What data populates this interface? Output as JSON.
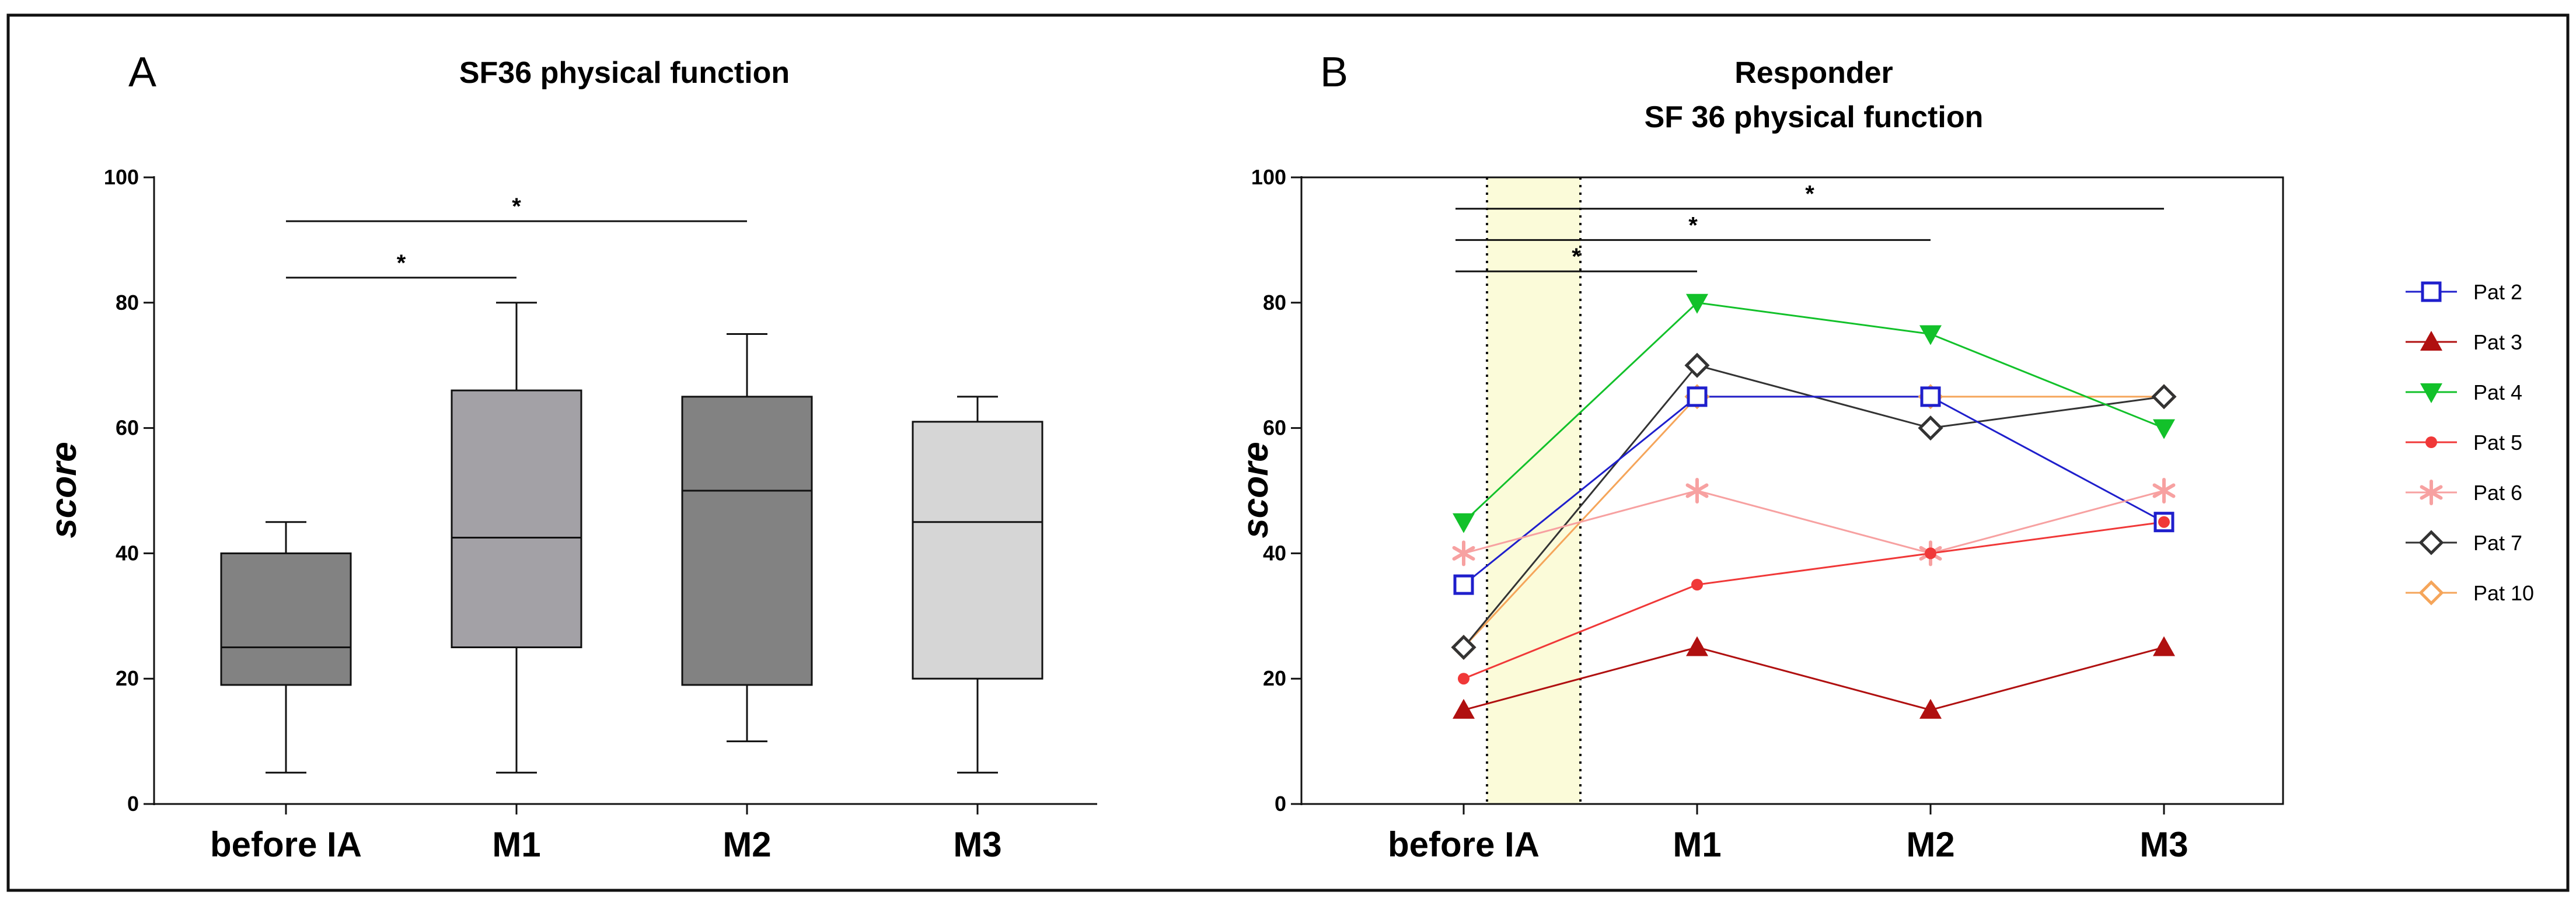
{
  "chart_data": [
    {
      "type": "box",
      "panel_label": "A",
      "title": "SF36 physical function",
      "xlabel": "",
      "ylabel": "score",
      "ylim": [
        0,
        100
      ],
      "yticks": [
        "0",
        "20",
        "40",
        "60",
        "80",
        "100"
      ],
      "categories": [
        "before IA",
        "M1",
        "M2",
        "M3"
      ],
      "boxes": [
        {
          "min": 5,
          "q1": 19,
          "median": 25,
          "q3": 40,
          "max": 45,
          "color": "#828282"
        },
        {
          "min": 5,
          "q1": 25,
          "median": 42.5,
          "q3": 66,
          "max": 80,
          "color": "#a3a1a6"
        },
        {
          "min": 10,
          "q1": 19,
          "median": 50,
          "q3": 65,
          "max": 75,
          "color": "#828282"
        },
        {
          "min": 5,
          "q1": 20,
          "median": 45,
          "q3": 61,
          "max": 65,
          "color": "#d6d6d6"
        }
      ],
      "significance": [
        {
          "from": 0,
          "to": 1,
          "y": 84,
          "label": "*"
        },
        {
          "from": 0,
          "to": 2,
          "y": 93,
          "label": "*"
        }
      ]
    },
    {
      "type": "line",
      "panel_label": "B",
      "title": [
        "Responder",
        "SF 36 physical function"
      ],
      "xlabel": "",
      "ylabel": "score",
      "ylim": [
        0,
        100
      ],
      "yticks": [
        "0",
        "20",
        "40",
        "60",
        "80",
        "100"
      ],
      "categories": [
        "before IA",
        "M1",
        "M2",
        "M3"
      ],
      "highlight_band": {
        "from": 0.1,
        "to": 0.5
      },
      "series": [
        {
          "name": "Pat 2",
          "values": [
            35,
            65,
            65,
            45
          ],
          "color": "#1f1fcc",
          "marker": "square-open"
        },
        {
          "name": "Pat 3",
          "values": [
            15,
            25,
            15,
            25
          ],
          "color": "#b01010",
          "marker": "triangle-up"
        },
        {
          "name": "Pat 4",
          "values": [
            45,
            80,
            75,
            60
          ],
          "color": "#12c12a",
          "marker": "triangle-down"
        },
        {
          "name": "Pat 5",
          "values": [
            20,
            35,
            40,
            45
          ],
          "color": "#f03838",
          "marker": "circle"
        },
        {
          "name": "Pat 6",
          "values": [
            40,
            50,
            40,
            50
          ],
          "color": "#f7a1a1",
          "marker": "asterisk"
        },
        {
          "name": "Pat 7",
          "values": [
            25,
            70,
            60,
            65
          ],
          "color": "#333333",
          "marker": "diamond-open"
        },
        {
          "name": "Pat 10",
          "values": [
            25,
            65,
            65,
            65
          ],
          "color": "#f5a55a",
          "marker": "diamond-open"
        }
      ],
      "significance": [
        {
          "from": 0,
          "to": 3,
          "y": 95,
          "label": "*"
        },
        {
          "from": 0,
          "to": 2,
          "y": 90,
          "label": "*"
        },
        {
          "from": 0,
          "to": 1,
          "y": 85,
          "label": "*"
        }
      ],
      "legend": "right"
    }
  ]
}
